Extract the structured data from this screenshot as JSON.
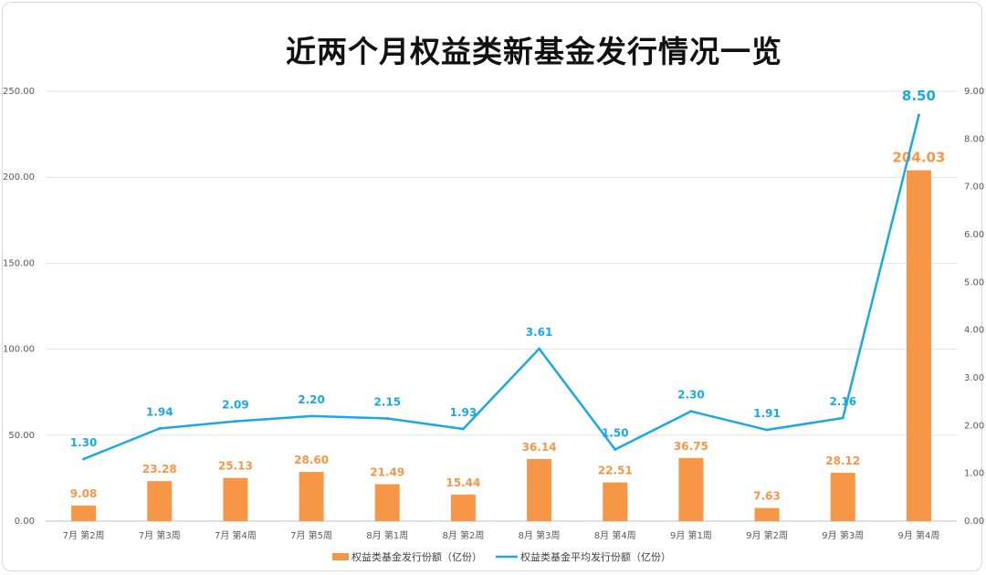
{
  "chart_data": {
    "type": "bar",
    "title": "近两个月权益类新基金发行情况一览",
    "categories": [
      "7月 第2周",
      "7月 第3周",
      "7月 第4周",
      "7月 第5周",
      "8月 第1周",
      "8月 第2周",
      "8月 第3周",
      "8月 第4周",
      "9月 第1周",
      "9月 第2周",
      "9月 第3周",
      "9月 第4周"
    ],
    "series": [
      {
        "name": "权益类基金发行份额（亿份）",
        "type": "bar",
        "axis": "left",
        "color": "#f79646",
        "values": [
          9.08,
          23.28,
          25.13,
          28.6,
          21.49,
          15.44,
          36.14,
          22.51,
          36.75,
          7.63,
          28.12,
          204.03
        ],
        "labels": [
          "9.08",
          "23.28",
          "25.13",
          "28.60",
          "21.49",
          "15.44",
          "36.14",
          "22.51",
          "36.75",
          "7.63",
          "28.12",
          "204.03"
        ]
      },
      {
        "name": "权益类基金平均发行份额（亿份）",
        "type": "line",
        "axis": "right",
        "color": "#1aa9e6",
        "values": [
          1.3,
          1.94,
          2.09,
          2.2,
          2.15,
          1.93,
          3.61,
          1.5,
          2.3,
          1.91,
          2.16,
          8.5
        ],
        "labels": [
          "1.30",
          "1.94",
          "2.09",
          "2.20",
          "2.15",
          "1.93",
          "3.61",
          "1.50",
          "2.30",
          "1.91",
          "2.16",
          "8.50"
        ]
      }
    ],
    "y_left": {
      "min": 0,
      "max": 250,
      "ticks": [
        "0.00",
        "50.00",
        "100.00",
        "150.00",
        "200.00",
        "250.00"
      ]
    },
    "y_right": {
      "min": 0,
      "max": 9,
      "ticks": [
        "0.00",
        "1.00",
        "2.00",
        "3.00",
        "4.00",
        "5.00",
        "6.00",
        "7.00",
        "8.00",
        "9.00"
      ]
    },
    "grid": true,
    "legend_position": "bottom"
  }
}
